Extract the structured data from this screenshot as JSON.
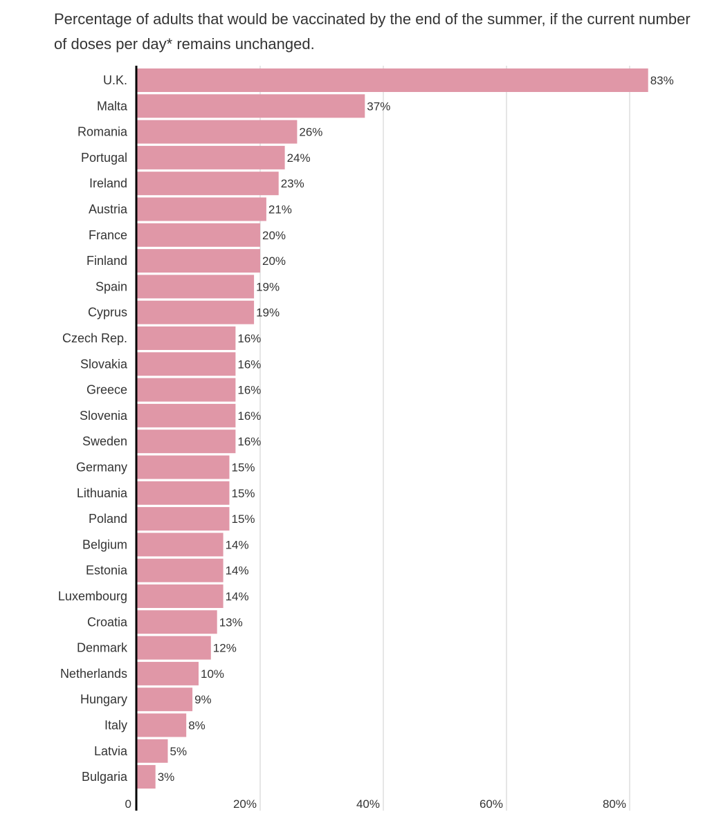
{
  "chart_data": {
    "type": "bar",
    "orientation": "horizontal",
    "subtitle": "Percentage of adults that would be vaccinated by the end of the summer, if the current number of doses per day* remains unchanged.",
    "categories": [
      "U.K.",
      "Malta",
      "Romania",
      "Portugal",
      "Ireland",
      "Austria",
      "France",
      "Finland",
      "Spain",
      "Cyprus",
      "Czech Rep.",
      "Slovakia",
      "Greece",
      "Slovenia",
      "Sweden",
      "Germany",
      "Lithuania",
      "Poland",
      "Belgium",
      "Estonia",
      "Luxembourg",
      "Croatia",
      "Denmark",
      "Netherlands",
      "Hungary",
      "Italy",
      "Latvia",
      "Bulgaria"
    ],
    "values": [
      83,
      37,
      26,
      24,
      23,
      21,
      20,
      20,
      19,
      19,
      16,
      16,
      16,
      16,
      16,
      15,
      15,
      15,
      14,
      14,
      14,
      13,
      12,
      10,
      9,
      8,
      5,
      3
    ],
    "value_labels": [
      "83%",
      "37%",
      "26%",
      "24%",
      "23%",
      "21%",
      "20%",
      "20%",
      "19%",
      "19%",
      "16%",
      "16%",
      "16%",
      "16%",
      "16%",
      "15%",
      "15%",
      "15%",
      "14%",
      "14%",
      "14%",
      "13%",
      "12%",
      "10%",
      "9%",
      "8%",
      "5%",
      "3%"
    ],
    "xticks": [
      0,
      20,
      40,
      60,
      80
    ],
    "xtick_labels": [
      "0",
      "20%",
      "40%",
      "60%",
      "80%"
    ],
    "xlim": [
      0,
      90
    ],
    "grid": true,
    "bar_color": "#e097a7",
    "axis_color": "#000000",
    "grid_color": "#cccccc"
  }
}
